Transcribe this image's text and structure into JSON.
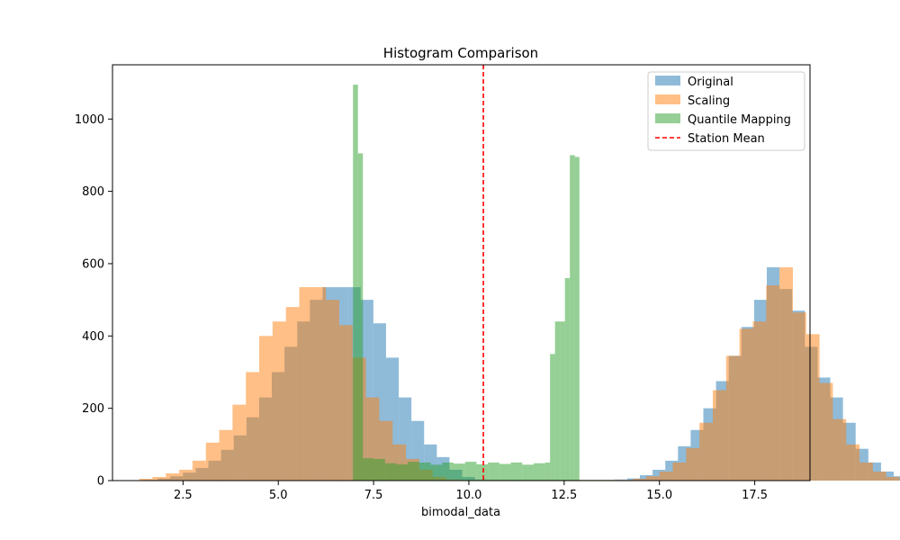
{
  "chart_data": {
    "type": "histogram",
    "title": "Histogram Comparison",
    "xlabel": "bimodal_data",
    "ylabel": "",
    "xlim": [
      0.65,
      18.95
    ],
    "ylim": [
      0,
      1150
    ],
    "xticks": [
      2.5,
      5.0,
      7.5,
      10.0,
      12.5,
      15.0,
      17.5
    ],
    "xtick_labels": [
      "2.5",
      "5.0",
      "7.5",
      "10.0",
      "12.5",
      "15.0",
      "17.5"
    ],
    "yticks": [
      0,
      200,
      400,
      600,
      800,
      1000
    ],
    "ytick_labels": [
      "0",
      "200",
      "400",
      "600",
      "800",
      "1000"
    ],
    "grid": false,
    "legend_position": "upper right",
    "series": [
      {
        "name": "Original",
        "style": "bar",
        "color": "#1f77b4",
        "alpha": 0.5,
        "x_start": 1.5,
        "bin_width": 0.333,
        "values": [
          2,
          6,
          12,
          22,
          35,
          55,
          85,
          125,
          175,
          230,
          300,
          370,
          440,
          500,
          535,
          535,
          535,
          500,
          435,
          340,
          230,
          165,
          100,
          65,
          30,
          10,
          3,
          2,
          2,
          2,
          2,
          2,
          2,
          2,
          2,
          2,
          2,
          3,
          6,
          15,
          30,
          55,
          95,
          140,
          200,
          275,
          345,
          425,
          500,
          590,
          530,
          470,
          370,
          285,
          230,
          160,
          88,
          50,
          25,
          12,
          3
        ]
      },
      {
        "name": "Scaling",
        "style": "bar",
        "color": "#ff7f0e",
        "alpha": 0.5,
        "x_start": 1.0,
        "bin_width": 0.35,
        "values": [
          1,
          5,
          10,
          20,
          30,
          55,
          105,
          140,
          210,
          300,
          400,
          440,
          480,
          535,
          535,
          500,
          430,
          340,
          230,
          165,
          100,
          60,
          30,
          10,
          3,
          2,
          2,
          2,
          2,
          2,
          2,
          2,
          2,
          2,
          2,
          2,
          2,
          2,
          5,
          12,
          25,
          50,
          90,
          160,
          250,
          345,
          420,
          440,
          540,
          590,
          465,
          405,
          270,
          170,
          100,
          50,
          25,
          10
        ]
      },
      {
        "name": "Quantile Mapping",
        "style": "bar",
        "color": "#2ca02c",
        "alpha": 0.5,
        "bins": [
          {
            "x0": 6.96,
            "x1": 7.09,
            "value": 1095
          },
          {
            "x0": 7.09,
            "x1": 7.22,
            "value": 905
          },
          {
            "x0": 7.22,
            "x1": 7.5,
            "value": 62
          },
          {
            "x0": 7.5,
            "x1": 7.8,
            "value": 60
          },
          {
            "x0": 7.8,
            "x1": 8.1,
            "value": 48
          },
          {
            "x0": 8.1,
            "x1": 8.4,
            "value": 45
          },
          {
            "x0": 8.4,
            "x1": 8.7,
            "value": 52
          },
          {
            "x0": 8.7,
            "x1": 9.0,
            "value": 50
          },
          {
            "x0": 9.0,
            "x1": 9.3,
            "value": 44
          },
          {
            "x0": 9.3,
            "x1": 9.6,
            "value": 50
          },
          {
            "x0": 9.6,
            "x1": 9.9,
            "value": 47
          },
          {
            "x0": 9.9,
            "x1": 10.2,
            "value": 52
          },
          {
            "x0": 10.2,
            "x1": 10.5,
            "value": 45
          },
          {
            "x0": 10.5,
            "x1": 10.8,
            "value": 50
          },
          {
            "x0": 10.8,
            "x1": 11.1,
            "value": 46
          },
          {
            "x0": 11.1,
            "x1": 11.4,
            "value": 50
          },
          {
            "x0": 11.4,
            "x1": 11.7,
            "value": 44
          },
          {
            "x0": 11.7,
            "x1": 12.0,
            "value": 48
          },
          {
            "x0": 12.0,
            "x1": 12.13,
            "value": 50
          },
          {
            "x0": 12.13,
            "x1": 12.26,
            "value": 350
          },
          {
            "x0": 12.26,
            "x1": 12.39,
            "value": 440
          },
          {
            "x0": 12.39,
            "x1": 12.52,
            "value": 440
          },
          {
            "x0": 12.52,
            "x1": 12.65,
            "value": 560
          },
          {
            "x0": 12.65,
            "x1": 12.78,
            "value": 900
          },
          {
            "x0": 12.78,
            "x1": 12.9,
            "value": 895
          }
        ]
      }
    ],
    "reference_lines": [
      {
        "name": "Station Mean",
        "style": "dashed-vline",
        "color": "#ff0000",
        "x": 10.38
      }
    ]
  }
}
